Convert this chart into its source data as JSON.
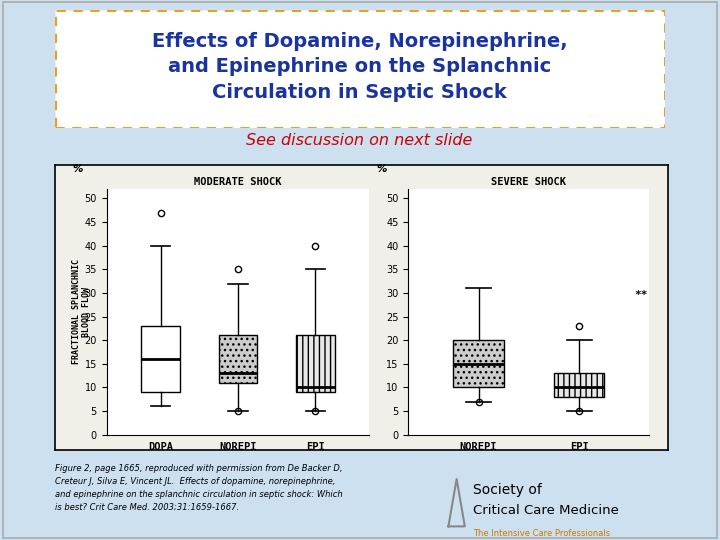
{
  "title_line1": "Effects of Dopamine, Norepinephrine,",
  "title_line2": "and Epinephrine on the Splanchnic",
  "title_line3": "Circulation in Septic Shock",
  "subtitle": "See discussion on next slide",
  "bg_color": "#cde0f0",
  "title_color": "#1933a0",
  "subtitle_color": "#cc0000",
  "title_box_border_color": "#e8a020",
  "title_box_bg": "#ffffff",
  "moderate_shock_label": "MODERATE SHOCK",
  "severe_shock_label": "SEVERE SHOCK",
  "ylabel": "FRACTIONAL SPLANCHNIC\nBLOOD FLOW",
  "percent_label": "%",
  "moderate_groups": [
    "DOPA",
    "NOREPI",
    "EPI"
  ],
  "severe_groups": [
    "NOREPI",
    "EPI"
  ],
  "moderate_data": {
    "DOPA": {
      "q1": 9,
      "median": 16,
      "q3": 23,
      "whislo": 6,
      "whishi": 40,
      "outliers": [
        47
      ]
    },
    "NOREPI": {
      "q1": 11,
      "median": 13,
      "q3": 21,
      "whislo": 5,
      "whishi": 32,
      "outliers": [
        35,
        5
      ]
    },
    "EPI": {
      "q1": 9,
      "median": 10,
      "q3": 21,
      "whislo": 5,
      "whishi": 35,
      "outliers": [
        40,
        5
      ]
    }
  },
  "severe_data": {
    "NOREPI": {
      "q1": 10,
      "median": 15,
      "q3": 20,
      "whislo": 7,
      "whishi": 31,
      "outliers": [
        7
      ]
    },
    "EPI": {
      "q1": 8,
      "median": 10,
      "q3": 13,
      "whislo": 5,
      "whishi": 20,
      "outliers": [
        23,
        5
      ]
    }
  },
  "yticks": [
    0,
    5,
    10,
    15,
    20,
    25,
    30,
    35,
    40,
    45,
    50
  ],
  "ylim": [
    0,
    52
  ],
  "box_width": 0.5,
  "moderate_hatches": [
    "",
    "...",
    "|||"
  ],
  "severe_hatches": [
    "...",
    "|||"
  ],
  "box_facecolors_moderate": [
    "#ffffff",
    "#cccccc",
    "#e8e8e8"
  ],
  "box_facecolors_severe": [
    "#cccccc",
    "#e8e8e8"
  ],
  "figure_caption": "Figure 2, page 1665, reproduced with permission from De Backer D,\nCreteur J, Silva E, Vincent JL.  Effects of dopamine, norepinephrine,\nand epinephrine on the splanchnic circulation in septic shock: Which\nis best? Crit Care Med. 2003;31:1659-1667.",
  "severe_annotation": "**",
  "chart_bg": "#f0f0e8",
  "outer_border_color": "#555555"
}
